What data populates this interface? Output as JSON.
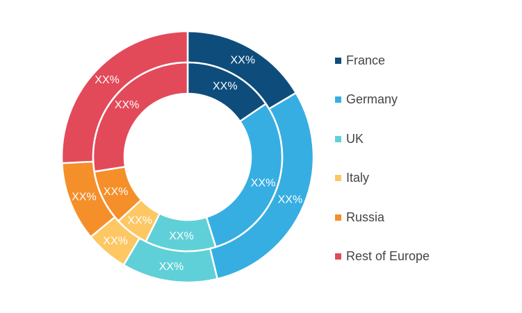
{
  "chart_data": {
    "type": "pie",
    "title": "",
    "categories": [
      "France",
      "Germany",
      "UK",
      "Italy",
      "Russia",
      "Rest of Europe"
    ],
    "colors": [
      "#0e4d7b",
      "#36aee2",
      "#5fd0d8",
      "#fdc764",
      "#f58f2a",
      "#e24a5a"
    ],
    "series": [
      {
        "ring": "outer",
        "values": [
          16.5,
          29.7,
          12.3,
          5.5,
          10.2,
          25.8
        ],
        "labels": [
          "XX%",
          "XX%",
          "XX%",
          "XX%",
          "XX%",
          "XX%"
        ]
      },
      {
        "ring": "inner",
        "values": [
          15.5,
          29.7,
          12.1,
          5.8,
          9.4,
          27.5
        ],
        "labels": [
          "XX%",
          "XX%",
          "XX%",
          "XX%",
          "XX%",
          "XX%"
        ]
      }
    ],
    "legend": {
      "position": "right",
      "items": [
        {
          "label": "France",
          "color": "#0e4d7b"
        },
        {
          "label": "Germany",
          "color": "#36aee2"
        },
        {
          "label": "UK",
          "color": "#5fd0d8"
        },
        {
          "label": "Italy",
          "color": "#fdc764"
        },
        {
          "label": "Russia",
          "color": "#f58f2a"
        },
        {
          "label": "Rest of Europe",
          "color": "#e24a5a"
        }
      ]
    }
  }
}
